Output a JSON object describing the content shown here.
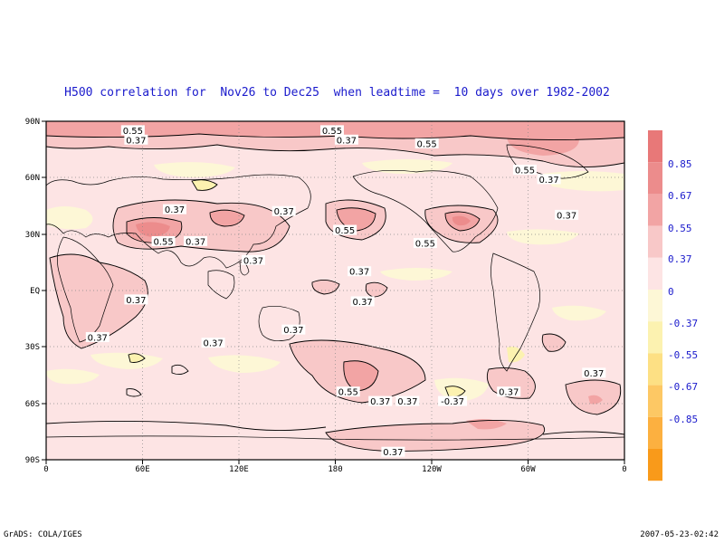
{
  "title": "H500 correlation for  Nov26 to Dec25  when leadtime =  10 days over 1982-2002",
  "footer_left": "GrADS: COLA/IGES",
  "footer_right": "2007-05-23-02:42",
  "lat_ticks": [
    "90N",
    "60N",
    "30N",
    "EQ",
    "30S",
    "60S",
    "90S"
  ],
  "lon_ticks": [
    "0",
    "60E",
    "120E",
    "180",
    "120W",
    "60W",
    "0"
  ],
  "legend": {
    "labels": [
      "0.85",
      "0.67",
      "0.55",
      "0.37",
      "0",
      "-0.37",
      "-0.55",
      "-0.67",
      "-0.85"
    ],
    "colors": [
      "#e87878",
      "#ec8c8c",
      "#f2a4a4",
      "#f8c8c8",
      "#fde4e4",
      "#fdf7d6",
      "#fcf2b0",
      "#fde084",
      "#fdc864",
      "#fcb040",
      "#f99a1a"
    ]
  },
  "contour_labels": [
    {
      "text": "0.55",
      "lon": 54,
      "lat": 85
    },
    {
      "text": "0.37",
      "lon": 56,
      "lat": 80
    },
    {
      "text": "0.55",
      "lon": 178,
      "lat": 85
    },
    {
      "text": "0.37",
      "lon": 187,
      "lat": 80
    },
    {
      "text": "0.55",
      "lon": 237,
      "lat": 78
    },
    {
      "text": "0.55",
      "lon": 298,
      "lat": 64
    },
    {
      "text": "0.37",
      "lon": 313,
      "lat": 59
    },
    {
      "text": "0.37",
      "lon": 148,
      "lat": 42
    },
    {
      "text": "0.37",
      "lon": 324,
      "lat": 40
    },
    {
      "text": "0.37",
      "lon": 80,
      "lat": 43
    },
    {
      "text": "0.55",
      "lon": 73,
      "lat": 26
    },
    {
      "text": "0.37",
      "lon": 93,
      "lat": 26
    },
    {
      "text": "0.55",
      "lon": 186,
      "lat": 32
    },
    {
      "text": "0.55",
      "lon": 236,
      "lat": 25
    },
    {
      "text": "0.37",
      "lon": 129,
      "lat": 16
    },
    {
      "text": "0.37",
      "lon": 195,
      "lat": 10
    },
    {
      "text": "0.37",
      "lon": 197,
      "lat": -6
    },
    {
      "text": "0.37",
      "lon": 56,
      "lat": -5
    },
    {
      "text": "0.37",
      "lon": 32,
      "lat": -25
    },
    {
      "text": "0.37",
      "lon": 104,
      "lat": -28
    },
    {
      "text": "0.37",
      "lon": 154,
      "lat": -21
    },
    {
      "text": "0.55",
      "lon": 188,
      "lat": -54
    },
    {
      "text": "0.37",
      "lon": 208,
      "lat": -59
    },
    {
      "text": "0.37",
      "lon": 225,
      "lat": -59
    },
    {
      "text": "-0.37",
      "lon": 253,
      "lat": -59
    },
    {
      "text": "0.37",
      "lon": 288,
      "lat": -54
    },
    {
      "text": "0.37",
      "lon": 341,
      "lat": -44
    },
    {
      "text": "0.37",
      "lon": 216,
      "lat": -86
    }
  ]
}
